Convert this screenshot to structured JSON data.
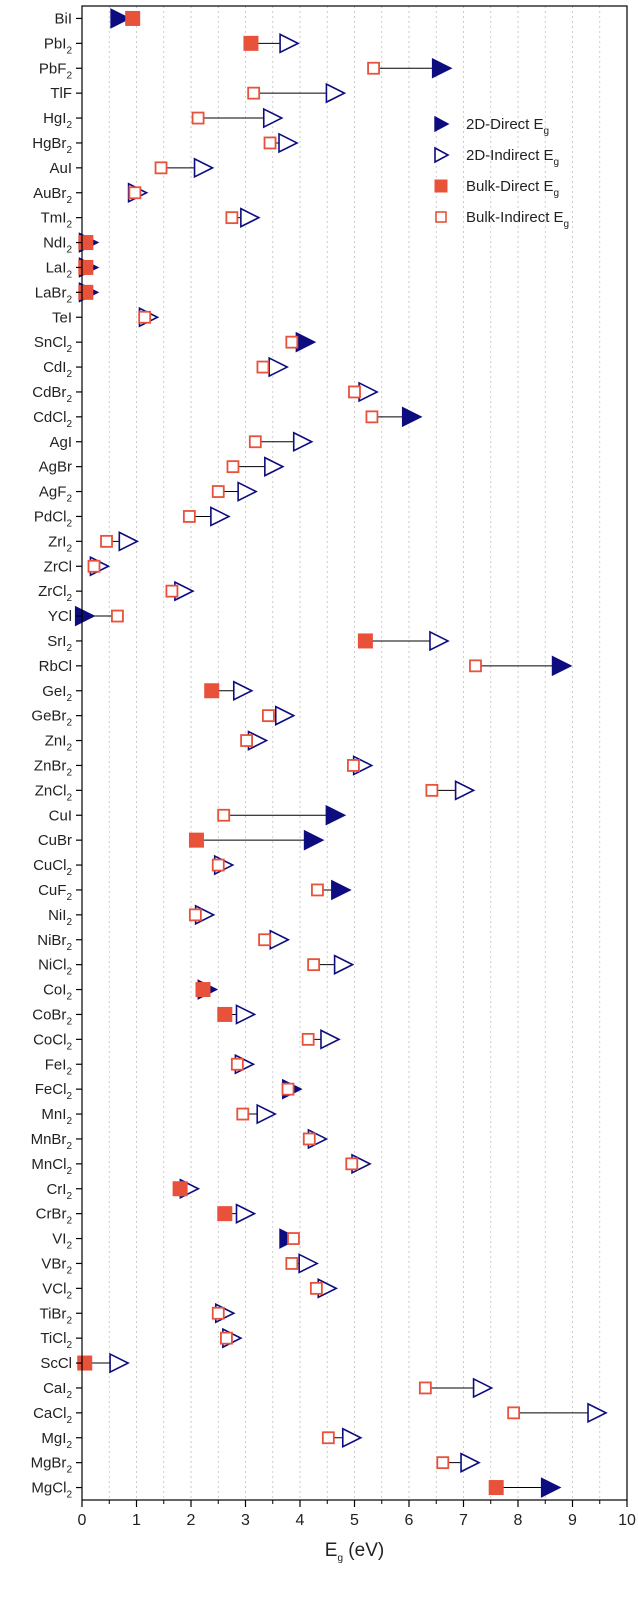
{
  "chart_data": {
    "type": "scatter",
    "orientation": "horizontal",
    "xlabel": "E_g (eV)",
    "xlabel_main": "E",
    "xlabel_sub": "g",
    "xlabel_rest": " (eV)",
    "xlim": [
      0,
      10
    ],
    "xticks": [
      0,
      1,
      2,
      3,
      4,
      5,
      6,
      7,
      8,
      9,
      10
    ],
    "grid": "vertical dotted",
    "legend_placement": "top-right",
    "colors": {
      "two_d": "#0d0d80",
      "bulk": "#e8513a",
      "connector": "#000000",
      "grid": "#bfbfbf"
    },
    "legend": [
      {
        "key": "2d_direct",
        "main": "2D-Direct E",
        "sub": "g"
      },
      {
        "key": "2d_indirect",
        "main": "2D-Indirect E",
        "sub": "g"
      },
      {
        "key": "bulk_direct",
        "main": "Bulk-Direct E",
        "sub": "g"
      },
      {
        "key": "bulk_indirect",
        "main": "Bulk-Indirect E",
        "sub": "g"
      }
    ],
    "materials": [
      {
        "label": "BiI",
        "sub": "",
        "twoD": 0.7,
        "twoDType": "direct",
        "bulk": 0.93,
        "bulkType": "direct"
      },
      {
        "label": "PbI",
        "sub": "2",
        "twoD": 3.8,
        "twoDType": "indirect",
        "bulk": 3.1,
        "bulkType": "direct"
      },
      {
        "label": "PbF",
        "sub": "2",
        "twoD": 6.6,
        "twoDType": "direct",
        "bulk": 5.35,
        "bulkType": "indirect"
      },
      {
        "label": "TlF",
        "sub": "",
        "twoD": 4.65,
        "twoDType": "indirect",
        "bulk": 3.15,
        "bulkType": "indirect"
      },
      {
        "label": "HgI",
        "sub": "2",
        "twoD": 3.5,
        "twoDType": "indirect",
        "bulk": 2.13,
        "bulkType": "indirect"
      },
      {
        "label": "HgBr",
        "sub": "2",
        "twoD": 3.78,
        "twoDType": "indirect",
        "bulk": 3.45,
        "bulkType": "indirect"
      },
      {
        "label": "AuI",
        "sub": "",
        "twoD": 2.23,
        "twoDType": "indirect",
        "bulk": 1.45,
        "bulkType": "indirect"
      },
      {
        "label": "AuBr",
        "sub": "2",
        "twoD": 1.02,
        "twoDType": "indirect",
        "bulk": 0.97,
        "bulkType": "indirect"
      },
      {
        "label": "TmI",
        "sub": "2",
        "twoD": 3.08,
        "twoDType": "indirect",
        "bulk": 2.75,
        "bulkType": "indirect"
      },
      {
        "label": "NdI",
        "sub": "2",
        "twoD": 0.12,
        "twoDType": "direct",
        "bulk": 0.07,
        "bulkType": "direct"
      },
      {
        "label": "LaI",
        "sub": "2",
        "twoD": 0.12,
        "twoDType": "direct",
        "bulk": 0.07,
        "bulkType": "direct"
      },
      {
        "label": "LaBr",
        "sub": "2",
        "twoD": 0.12,
        "twoDType": "direct",
        "bulk": 0.07,
        "bulkType": "direct"
      },
      {
        "label": "TeI",
        "sub": "",
        "twoD": 1.22,
        "twoDType": "indirect",
        "bulk": 1.15,
        "bulkType": "indirect"
      },
      {
        "label": "SnCl",
        "sub": "2",
        "twoD": 4.1,
        "twoDType": "direct",
        "bulk": 3.85,
        "bulkType": "indirect"
      },
      {
        "label": "CdI",
        "sub": "2",
        "twoD": 3.6,
        "twoDType": "indirect",
        "bulk": 3.32,
        "bulkType": "indirect"
      },
      {
        "label": "CdBr",
        "sub": "2",
        "twoD": 5.25,
        "twoDType": "indirect",
        "bulk": 5.0,
        "bulkType": "indirect"
      },
      {
        "label": "CdCl",
        "sub": "2",
        "twoD": 6.05,
        "twoDType": "direct",
        "bulk": 5.32,
        "bulkType": "indirect"
      },
      {
        "label": "AgI",
        "sub": "",
        "twoD": 4.05,
        "twoDType": "indirect",
        "bulk": 3.18,
        "bulkType": "indirect"
      },
      {
        "label": "AgBr",
        "sub": "",
        "twoD": 3.52,
        "twoDType": "indirect",
        "bulk": 2.77,
        "bulkType": "indirect"
      },
      {
        "label": "AgF",
        "sub": "2",
        "twoD": 3.03,
        "twoDType": "indirect",
        "bulk": 2.5,
        "bulkType": "indirect"
      },
      {
        "label": "PdCl",
        "sub": "2",
        "twoD": 2.53,
        "twoDType": "indirect",
        "bulk": 1.97,
        "bulkType": "indirect"
      },
      {
        "label": "ZrI",
        "sub": "2",
        "twoD": 0.85,
        "twoDType": "indirect",
        "bulk": 0.45,
        "bulkType": "indirect"
      },
      {
        "label": "ZrCl",
        "sub": "",
        "twoD": 0.32,
        "twoDType": "indirect",
        "bulk": 0.22,
        "bulkType": "indirect"
      },
      {
        "label": "ZrCl",
        "sub": "2",
        "twoD": 1.87,
        "twoDType": "indirect",
        "bulk": 1.65,
        "bulkType": "indirect"
      },
      {
        "label": "YCl",
        "sub": "",
        "twoD": 0.05,
        "twoDType": "direct",
        "bulk": 0.65,
        "bulkType": "indirect"
      },
      {
        "label": "SrI",
        "sub": "2",
        "twoD": 6.55,
        "twoDType": "indirect",
        "bulk": 5.2,
        "bulkType": "direct"
      },
      {
        "label": "RbCl",
        "sub": "",
        "twoD": 8.8,
        "twoDType": "direct",
        "bulk": 7.22,
        "bulkType": "indirect"
      },
      {
        "label": "GeI",
        "sub": "2",
        "twoD": 2.95,
        "twoDType": "indirect",
        "bulk": 2.38,
        "bulkType": "direct"
      },
      {
        "label": "GeBr",
        "sub": "2",
        "twoD": 3.72,
        "twoDType": "indirect",
        "bulk": 3.42,
        "bulkType": "indirect"
      },
      {
        "label": "ZnI",
        "sub": "2",
        "twoD": 3.22,
        "twoDType": "indirect",
        "bulk": 3.02,
        "bulkType": "indirect"
      },
      {
        "label": "ZnBr",
        "sub": "2",
        "twoD": 5.15,
        "twoDType": "indirect",
        "bulk": 4.98,
        "bulkType": "indirect"
      },
      {
        "label": "ZnCl",
        "sub": "2",
        "twoD": 7.02,
        "twoDType": "indirect",
        "bulk": 6.42,
        "bulkType": "indirect"
      },
      {
        "label": "CuI",
        "sub": "",
        "twoD": 4.65,
        "twoDType": "direct",
        "bulk": 2.6,
        "bulkType": "indirect"
      },
      {
        "label": "CuBr",
        "sub": "",
        "twoD": 4.25,
        "twoDType": "direct",
        "bulk": 2.1,
        "bulkType": "direct"
      },
      {
        "label": "CuCl",
        "sub": "2",
        "twoD": 2.6,
        "twoDType": "indirect",
        "bulk": 2.5,
        "bulkType": "indirect"
      },
      {
        "label": "CuF",
        "sub": "2",
        "twoD": 4.75,
        "twoDType": "direct",
        "bulk": 4.32,
        "bulkType": "indirect"
      },
      {
        "label": "NiI",
        "sub": "2",
        "twoD": 2.25,
        "twoDType": "indirect",
        "bulk": 2.08,
        "bulkType": "indirect"
      },
      {
        "label": "NiBr",
        "sub": "2",
        "twoD": 3.62,
        "twoDType": "indirect",
        "bulk": 3.35,
        "bulkType": "indirect"
      },
      {
        "label": "NiCl",
        "sub": "2",
        "twoD": 4.8,
        "twoDType": "indirect",
        "bulk": 4.25,
        "bulkType": "indirect"
      },
      {
        "label": "CoI",
        "sub": "2",
        "twoD": 2.3,
        "twoDType": "direct",
        "bulk": 2.22,
        "bulkType": "direct"
      },
      {
        "label": "CoBr",
        "sub": "2",
        "twoD": 3.0,
        "twoDType": "indirect",
        "bulk": 2.62,
        "bulkType": "direct"
      },
      {
        "label": "CoCl",
        "sub": "2",
        "twoD": 4.55,
        "twoDType": "indirect",
        "bulk": 4.15,
        "bulkType": "indirect"
      },
      {
        "label": "FeI",
        "sub": "2",
        "twoD": 2.98,
        "twoDType": "indirect",
        "bulk": 2.85,
        "bulkType": "indirect"
      },
      {
        "label": "FeCl",
        "sub": "2",
        "twoD": 3.85,
        "twoDType": "direct",
        "bulk": 3.78,
        "bulkType": "indirect"
      },
      {
        "label": "MnI",
        "sub": "2",
        "twoD": 3.38,
        "twoDType": "indirect",
        "bulk": 2.95,
        "bulkType": "indirect"
      },
      {
        "label": "MnBr",
        "sub": "2",
        "twoD": 4.32,
        "twoDType": "indirect",
        "bulk": 4.17,
        "bulkType": "indirect"
      },
      {
        "label": "MnCl",
        "sub": "2",
        "twoD": 5.12,
        "twoDType": "indirect",
        "bulk": 4.95,
        "bulkType": "indirect"
      },
      {
        "label": "CrI",
        "sub": "2",
        "twoD": 1.97,
        "twoDType": "indirect",
        "bulk": 1.8,
        "bulkType": "direct"
      },
      {
        "label": "CrBr",
        "sub": "2",
        "twoD": 3.0,
        "twoDType": "indirect",
        "bulk": 2.62,
        "bulkType": "direct"
      },
      {
        "label": "VI",
        "sub": "2",
        "twoD": 3.8,
        "twoDType": "direct",
        "bulk": 3.88,
        "bulkType": "indirect"
      },
      {
        "label": "VBr",
        "sub": "2",
        "twoD": 4.15,
        "twoDType": "indirect",
        "bulk": 3.85,
        "bulkType": "indirect"
      },
      {
        "label": "VCl",
        "sub": "2",
        "twoD": 4.5,
        "twoDType": "indirect",
        "bulk": 4.3,
        "bulkType": "indirect"
      },
      {
        "label": "TiBr",
        "sub": "2",
        "twoD": 2.62,
        "twoDType": "indirect",
        "bulk": 2.5,
        "bulkType": "indirect"
      },
      {
        "label": "TiCl",
        "sub": "2",
        "twoD": 2.75,
        "twoDType": "indirect",
        "bulk": 2.65,
        "bulkType": "indirect"
      },
      {
        "label": "ScCl",
        "sub": "",
        "twoD": 0.68,
        "twoDType": "indirect",
        "bulk": 0.05,
        "bulkType": "direct"
      },
      {
        "label": "CaI",
        "sub": "2",
        "twoD": 7.35,
        "twoDType": "indirect",
        "bulk": 6.3,
        "bulkType": "indirect"
      },
      {
        "label": "CaCl",
        "sub": "2",
        "twoD": 9.45,
        "twoDType": "indirect",
        "bulk": 7.92,
        "bulkType": "indirect"
      },
      {
        "label": "MgI",
        "sub": "2",
        "twoD": 4.95,
        "twoDType": "indirect",
        "bulk": 4.52,
        "bulkType": "indirect"
      },
      {
        "label": "MgBr",
        "sub": "2",
        "twoD": 7.12,
        "twoDType": "indirect",
        "bulk": 6.62,
        "bulkType": "indirect"
      },
      {
        "label": "MgCl",
        "sub": "2",
        "twoD": 8.6,
        "twoDType": "direct",
        "bulk": 7.6,
        "bulkType": "direct"
      }
    ]
  }
}
